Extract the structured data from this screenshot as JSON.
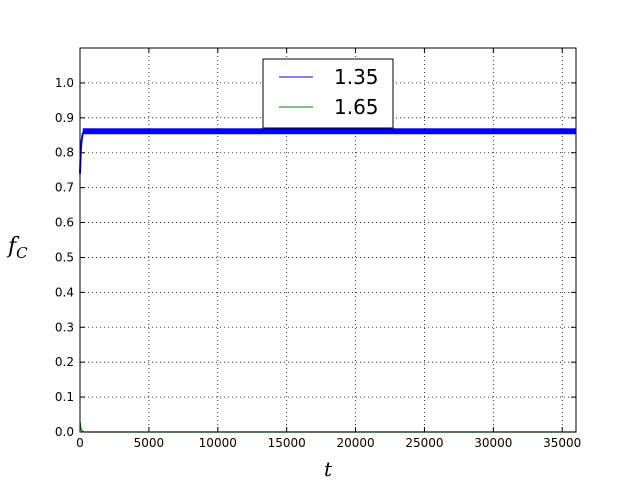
{
  "chart_data": {
    "type": "line",
    "xlabel": "t",
    "ylabel_main": "f",
    "ylabel_sub": "C",
    "xlim": [
      0,
      36000
    ],
    "ylim": [
      0.0,
      1.1
    ],
    "xticks": [
      0,
      5000,
      10000,
      15000,
      20000,
      25000,
      30000,
      35000
    ],
    "xtick_labels": [
      "0",
      "5000",
      "10000",
      "15000",
      "20000",
      "25000",
      "30000",
      "35000"
    ],
    "yticks": [
      0.0,
      0.1,
      0.2,
      0.3,
      0.4,
      0.5,
      0.6,
      0.7,
      0.8,
      0.9,
      1.0
    ],
    "ytick_labels": [
      "0.0",
      "0.1",
      "0.2",
      "0.3",
      "0.4",
      "0.5",
      "0.6",
      "0.7",
      "0.8",
      "0.9",
      "1.0"
    ],
    "grid": true,
    "legend_position": "top-center",
    "series": [
      {
        "name": "1.35",
        "color": "#0000ff",
        "x": [
          0,
          50,
          100,
          200,
          300,
          500,
          1000,
          36000
        ],
        "y": [
          0.74,
          0.8,
          0.83,
          0.855,
          0.862,
          0.862,
          0.862,
          0.862
        ],
        "band": [
          0.853,
          0.87
        ]
      },
      {
        "name": "1.65",
        "color": "#008000",
        "x": [
          0,
          50,
          100,
          200,
          300,
          500,
          36000
        ],
        "y": [
          0.03,
          0.015,
          0.005,
          0.002,
          0.0,
          0.0,
          0.0
        ]
      }
    ]
  }
}
